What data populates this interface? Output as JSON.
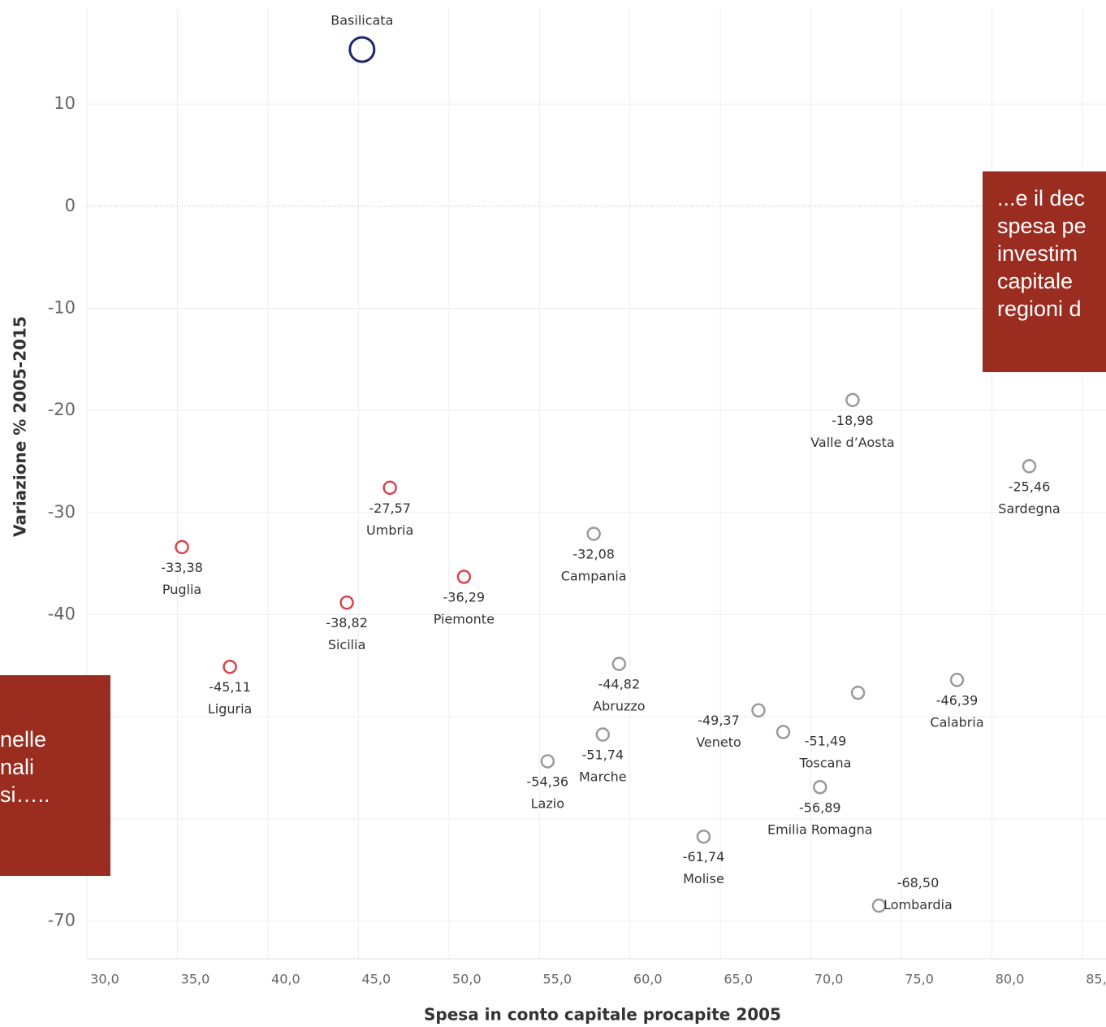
{
  "chart_data": {
    "type": "scatter",
    "x_label": "Spesa in conto capitale procapite 2005",
    "y_label": "Variazione % 2005-2015",
    "xlim": [
      30,
      86.3
    ],
    "ylim": [
      -73.7,
      20.2
    ],
    "xticks": [
      {
        "value": 30,
        "label": "30,0"
      },
      {
        "value": 35,
        "label": "35,0"
      },
      {
        "value": 40,
        "label": "40,0"
      },
      {
        "value": 45,
        "label": "45,0"
      },
      {
        "value": 50,
        "label": "50,0"
      },
      {
        "value": 55,
        "label": "55,0"
      },
      {
        "value": 60,
        "label": "60,0"
      },
      {
        "value": 65,
        "label": "65,0"
      },
      {
        "value": 70,
        "label": "70,0"
      },
      {
        "value": 75,
        "label": "75,0"
      },
      {
        "value": 80,
        "label": "80,0"
      },
      {
        "value": 85,
        "label": "85,0"
      }
    ],
    "yticks": [
      10,
      0,
      -10,
      -20,
      -30,
      -40,
      -50,
      -60,
      -70
    ],
    "grid": true,
    "series": [
      {
        "color": "#d9434c",
        "labels": [
          "Puglia",
          "Liguria",
          "Sicilia",
          "Umbria",
          "Piemonte"
        ],
        "x": [
          35.25,
          37.9,
          44.36,
          46.74,
          50.83
        ],
        "values": [
          -33.38,
          -45.11,
          -38.82,
          -27.57,
          -36.29
        ],
        "value_labels": [
          "-33,38",
          "-45,11",
          "-38,82",
          "-27,57",
          "-36,29"
        ]
      },
      {
        "color": "#9a9a9a",
        "labels": [
          "Campania",
          "Abruzzo",
          "Lazio",
          "Marche",
          "Molise",
          "Veneto",
          "Toscana",
          null,
          "Emilia Romagna",
          "Lombardia",
          "Calabria",
          "Valle d’Aosta",
          "Sardegna"
        ],
        "x": [
          58.0,
          59.4,
          55.45,
          58.5,
          64.07,
          67.1,
          68.47,
          72.6,
          70.5,
          73.76,
          78.07,
          72.3,
          82.06
        ],
        "values": [
          -32.08,
          -44.82,
          -54.36,
          -51.74,
          -61.74,
          -49.37,
          -51.49,
          -47.65,
          -56.89,
          -68.5,
          -46.39,
          -18.98,
          -25.46
        ],
        "value_labels": [
          "-32,08",
          "-44,82",
          "-54,36",
          "-51,74",
          "-61,74",
          "-49,37",
          "-51,49",
          null,
          "-56,89",
          "-68,50",
          "-46,39",
          "-18,98",
          "-25,46"
        ]
      },
      {
        "color": "#1c2570",
        "labels": [
          "Basilicata"
        ],
        "x": [
          45.2
        ],
        "values": [
          15.35
        ],
        "value_labels": [
          null
        ]
      }
    ],
    "annotations": [
      {
        "lines": [
          "...e il dec",
          "spesa pe",
          "investim",
          "capitale",
          "regioni d"
        ]
      },
      {
        "lines": [
          "nelle",
          "nali",
          "si….."
        ]
      }
    ]
  }
}
